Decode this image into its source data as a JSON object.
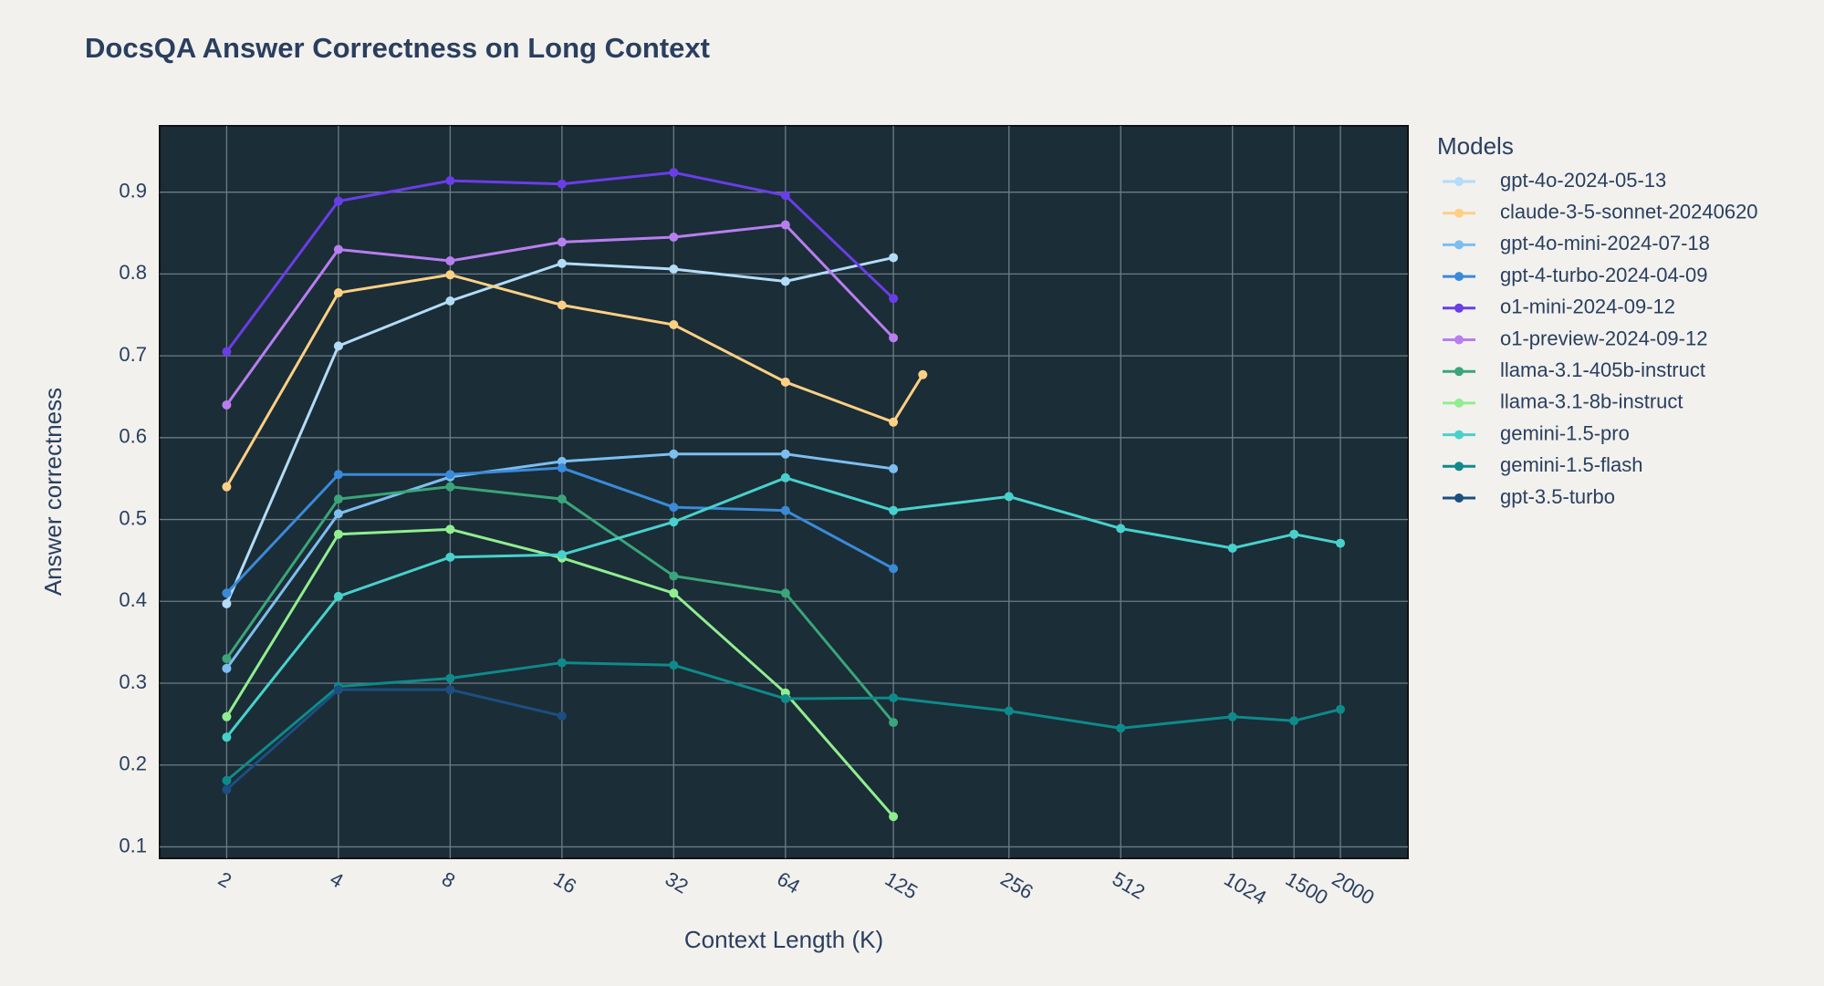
{
  "chart_data": {
    "type": "line",
    "title": "DocsQA Answer Correctness on Long Context",
    "x_label": "Context Length (K)",
    "y_label": "Answer correctness",
    "legend_title": "Models",
    "xscale": "log",
    "xlim": [
      1.32,
      3040
    ],
    "xticks": [
      2,
      4,
      8,
      16,
      32,
      64,
      125,
      256,
      512,
      1024,
      1500,
      2000
    ],
    "ylim": [
      0.086,
      0.981
    ],
    "yticks": [
      0.1,
      0.2,
      0.3,
      0.4,
      0.5,
      0.6,
      0.7,
      0.8,
      0.9
    ],
    "grid": true,
    "legend": "right",
    "series": [
      {
        "name": "gpt-4o-2024-05-13",
        "color": "#b3dcf7",
        "x": [
          2,
          4,
          8,
          16,
          32,
          64,
          125
        ],
        "values": [
          0.397,
          0.712,
          0.767,
          0.813,
          0.806,
          0.791,
          0.82
        ]
      },
      {
        "name": "claude-3-5-sonnet-20240620",
        "color": "#fdd085",
        "x": [
          2,
          4,
          8,
          16,
          32,
          64,
          125,
          150
        ],
        "values": [
          0.54,
          0.777,
          0.799,
          0.762,
          0.738,
          0.668,
          0.619,
          0.677
        ]
      },
      {
        "name": "gpt-4o-mini-2024-07-18",
        "color": "#7dbef0",
        "x": [
          2,
          4,
          8,
          16,
          32,
          64,
          125
        ],
        "values": [
          0.318,
          0.507,
          0.552,
          0.571,
          0.58,
          0.58,
          0.562
        ]
      },
      {
        "name": "gpt-4-turbo-2024-04-09",
        "color": "#3b8ad9",
        "x": [
          2,
          4,
          8,
          16,
          32,
          64,
          125
        ],
        "values": [
          0.41,
          0.555,
          0.555,
          0.563,
          0.515,
          0.511,
          0.44
        ]
      },
      {
        "name": "o1-mini-2024-09-12",
        "color": "#6a3de8",
        "x": [
          2,
          4,
          8,
          16,
          32,
          64,
          125
        ],
        "values": [
          0.705,
          0.889,
          0.914,
          0.91,
          0.924,
          0.896,
          0.77
        ]
      },
      {
        "name": "o1-preview-2024-09-12",
        "color": "#b87ef0",
        "x": [
          2,
          4,
          8,
          16,
          32,
          64,
          125
        ],
        "values": [
          0.64,
          0.83,
          0.816,
          0.839,
          0.845,
          0.86,
          0.722
        ]
      },
      {
        "name": "llama-3.1-405b-instruct",
        "color": "#3aa57a",
        "x": [
          2,
          4,
          8,
          16,
          32,
          64,
          125
        ],
        "values": [
          0.33,
          0.525,
          0.54,
          0.525,
          0.431,
          0.41,
          0.252
        ]
      },
      {
        "name": "llama-3.1-8b-instruct",
        "color": "#90ee90",
        "x": [
          2,
          4,
          8,
          16,
          32,
          64,
          125
        ],
        "values": [
          0.259,
          0.482,
          0.488,
          0.453,
          0.41,
          0.288,
          0.137
        ]
      },
      {
        "name": "gemini-1.5-pro",
        "color": "#48d1cc",
        "x": [
          2,
          4,
          8,
          16,
          32,
          64,
          125,
          256,
          512,
          1024,
          1500,
          2000
        ],
        "values": [
          0.234,
          0.406,
          0.454,
          0.457,
          0.497,
          0.551,
          0.511,
          0.528,
          0.489,
          0.465,
          0.482,
          0.471
        ]
      },
      {
        "name": "gemini-1.5-flash",
        "color": "#0e8a8a",
        "x": [
          2,
          4,
          8,
          16,
          32,
          64,
          125,
          256,
          512,
          1024,
          1500,
          2000
        ],
        "values": [
          0.181,
          0.296,
          0.306,
          0.325,
          0.322,
          0.281,
          0.282,
          0.266,
          0.245,
          0.259,
          0.254,
          0.268
        ]
      },
      {
        "name": "gpt-3.5-turbo",
        "color": "#1c4e80",
        "x": [
          2,
          4,
          8,
          16
        ],
        "values": [
          0.17,
          0.292,
          0.292,
          0.26
        ]
      }
    ]
  }
}
